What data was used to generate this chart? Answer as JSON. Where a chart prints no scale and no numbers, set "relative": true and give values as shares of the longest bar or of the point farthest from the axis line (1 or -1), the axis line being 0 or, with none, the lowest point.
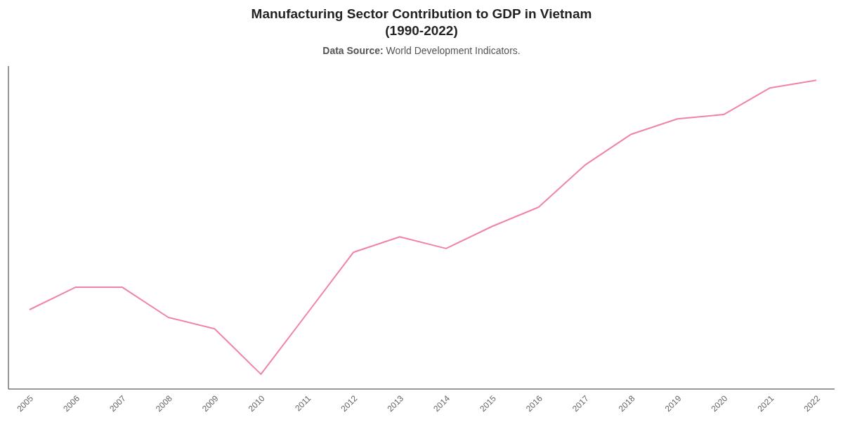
{
  "chart_data": {
    "type": "line",
    "title": "Manufacturing Sector Contribution to GDP in Vietnam\n(1990-2022)",
    "subtitle": "Data Source: World Development Indicators.",
    "relative": true,
    "categories": [
      "2005",
      "2006",
      "2007",
      "2008",
      "2009",
      "2010",
      "2011",
      "2012",
      "2013",
      "2014",
      "2015",
      "2016",
      "2017",
      "2018",
      "2019",
      "2020",
      "2021",
      "2022"
    ],
    "series": [
      {
        "color": "#f082ad",
        "values": [
          0.257,
          0.33,
          0.33,
          0.232,
          0.195,
          0.048,
          0.245,
          0.443,
          0.493,
          0.455,
          0.527,
          0.589,
          0.725,
          0.825,
          0.875,
          0.889,
          0.975,
          1
        ]
      }
    ],
    "grid": false,
    "legend": false,
    "marker": "none",
    "line_style": "solid"
  }
}
